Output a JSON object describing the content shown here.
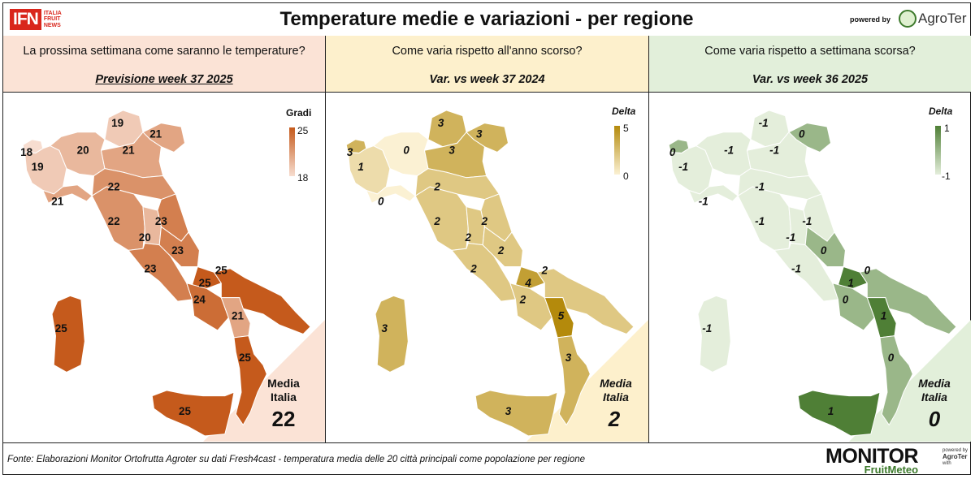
{
  "header": {
    "logo_main": "IFN",
    "logo_sub": [
      "ITALIA",
      "FRUIT",
      "NEWS"
    ],
    "title": "Temperature medie e variazioni - per regione",
    "powered_by": "powered by",
    "brand": "AgroTer"
  },
  "panels": [
    {
      "question": "La prossima settimana come saranno le temperature?",
      "subtitle": "Previsione week 37 2025",
      "legend_title": "Gradi",
      "legend_max": "25",
      "legend_min": "18",
      "media_label_1": "Media",
      "media_label_2": "Italia",
      "media_value": "22",
      "colors": {
        "low": "#f7ddd0",
        "high": "#c55a1c",
        "tri": "#fbe3d6"
      }
    },
    {
      "question": "Come varia rispetto all'anno scorso?",
      "subtitle": "Var. vs week 37 2024",
      "legend_title": "Delta",
      "legend_max": "5",
      "legend_min": "0",
      "media_label_1": "Media",
      "media_label_2": "Italia",
      "media_value": "2",
      "colors": {
        "low": "#fbf1d3",
        "high": "#b48a0c",
        "tri": "#fdf0cc"
      }
    },
    {
      "question": "Come varia rispetto a settimana scorsa?",
      "subtitle": "Var. vs week 36 2025",
      "legend_title": "Delta",
      "legend_max": "1",
      "legend_min": "-1",
      "media_label_1": "Media",
      "media_label_2": "Italia",
      "media_value": "0",
      "colors": {
        "low": "#e4eedb",
        "high": "#4f7f36",
        "tri": "#e2efda"
      }
    }
  ],
  "regions": [
    {
      "name": "Valle d'Aosta",
      "p1": "18",
      "p2": "3",
      "p3": "0"
    },
    {
      "name": "Piemonte",
      "p1": "19",
      "p2": "1",
      "p3": "-1"
    },
    {
      "name": "Liguria",
      "p1": "21",
      "p2": "0",
      "p3": "-1"
    },
    {
      "name": "Lombardia",
      "p1": "20",
      "p2": "0",
      "p3": "-1"
    },
    {
      "name": "Trentino-Alto Adige",
      "p1": "19",
      "p2": "3",
      "p3": "-1"
    },
    {
      "name": "Veneto",
      "p1": "21",
      "p2": "3",
      "p3": "-1"
    },
    {
      "name": "Friuli-Venezia Giulia",
      "p1": "21",
      "p2": "3",
      "p3": "0"
    },
    {
      "name": "Emilia-Romagna",
      "p1": "22",
      "p2": "2",
      "p3": "-1"
    },
    {
      "name": "Toscana",
      "p1": "22",
      "p2": "2",
      "p3": "-1"
    },
    {
      "name": "Marche",
      "p1": "23",
      "p2": "2",
      "p3": "-1"
    },
    {
      "name": "Umbria",
      "p1": "20",
      "p2": "2",
      "p3": "-1"
    },
    {
      "name": "Lazio",
      "p1": "23",
      "p2": "2",
      "p3": "-1"
    },
    {
      "name": "Abruzzo",
      "p1": "23",
      "p2": "2",
      "p3": "0"
    },
    {
      "name": "Molise",
      "p1": "25",
      "p2": "4",
      "p3": "1"
    },
    {
      "name": "Campania",
      "p1": "24",
      "p2": "2",
      "p3": "0"
    },
    {
      "name": "Puglia",
      "p1": "25",
      "p2": "2",
      "p3": "0"
    },
    {
      "name": "Basilicata",
      "p1": "21",
      "p2": "5",
      "p3": "1"
    },
    {
      "name": "Calabria",
      "p1": "25",
      "p2": "3",
      "p3": "0"
    },
    {
      "name": "Sicilia",
      "p1": "25",
      "p2": "3",
      "p3": "1"
    },
    {
      "name": "Sardegna",
      "p1": "25",
      "p2": "3",
      "p3": "-1"
    }
  ],
  "footer": {
    "source": "Fonte: Elaborazioni Monitor Ortofrutta Agroter su dati Fresh4cast - temperatura media delle 20 città principali come popolazione per regione",
    "monitor_1": "MONITOR",
    "monitor_2": "FruitMeteo",
    "side_1": "powered by",
    "side_2": "AgroTer",
    "side_3": "with"
  }
}
